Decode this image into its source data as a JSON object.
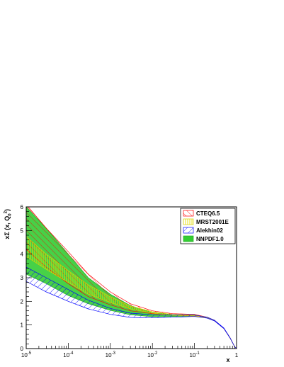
{
  "chart_data": {
    "type": "area",
    "title": "",
    "xlabel": "x",
    "ylabel": "xΣ (x, Q0²)",
    "x_scale": "log",
    "xlim": [
      1e-05,
      1
    ],
    "ylim": [
      0,
      6
    ],
    "x_tick_labels": [
      {
        "base": "10",
        "exp": "-5",
        "value": 1e-05
      },
      {
        "base": "10",
        "exp": "-4",
        "value": 0.0001
      },
      {
        "base": "10",
        "exp": "-3",
        "value": 0.001
      },
      {
        "base": "10",
        "exp": "-2",
        "value": 0.01
      },
      {
        "base": "10",
        "exp": "-1",
        "value": 0.1
      },
      {
        "base": "1",
        "exp": "",
        "value": 1
      }
    ],
    "y_tick_labels": [
      "0",
      "1",
      "2",
      "3",
      "4",
      "5",
      "6"
    ],
    "legend_position": "top-right",
    "x": [
      1e-05,
      3e-05,
      0.0001,
      0.0003,
      0.001,
      0.003,
      0.01,
      0.03,
      0.1,
      0.2,
      0.3,
      0.5,
      0.7,
      0.9,
      1
    ],
    "series": [
      {
        "name": "CTEQ6.5",
        "style": "hatched-diagonal",
        "color": "#ff0000",
        "lower": [
          4.2,
          3.45,
          2.75,
          2.2,
          1.85,
          1.6,
          1.48,
          1.42,
          1.38,
          1.3,
          1.18,
          0.85,
          0.45,
          0.08,
          0.0
        ],
        "upper": [
          6.1,
          5.1,
          4.1,
          3.15,
          2.4,
          1.9,
          1.6,
          1.48,
          1.45,
          1.33,
          1.2,
          0.86,
          0.46,
          0.08,
          0.0
        ]
      },
      {
        "name": "MRST2001E",
        "style": "hatched-vertical",
        "color": "#ffff00",
        "lower": [
          3.9,
          3.35,
          2.8,
          2.3,
          1.95,
          1.68,
          1.5,
          1.41,
          1.38,
          1.3,
          1.18,
          0.85,
          0.45,
          0.08,
          0.0
        ],
        "upper": [
          4.75,
          4.0,
          3.3,
          2.7,
          2.2,
          1.8,
          1.56,
          1.45,
          1.41,
          1.32,
          1.19,
          0.86,
          0.46,
          0.08,
          0.0
        ]
      },
      {
        "name": "Alekhin02",
        "style": "hatched-diagonal",
        "color": "#0000ff",
        "lower": [
          2.85,
          2.4,
          2.0,
          1.68,
          1.45,
          1.32,
          1.3,
          1.33,
          1.36,
          1.29,
          1.17,
          0.85,
          0.45,
          0.08,
          0.0
        ],
        "upper": [
          3.45,
          3.0,
          2.5,
          2.05,
          1.7,
          1.5,
          1.43,
          1.42,
          1.42,
          1.33,
          1.2,
          0.87,
          0.46,
          0.08,
          0.0
        ]
      },
      {
        "name": "NNPDF1.0",
        "style": "solid",
        "color": "#33cc33",
        "lower": [
          3.15,
          2.75,
          2.25,
          1.9,
          1.62,
          1.43,
          1.35,
          1.36,
          1.37,
          1.3,
          1.18,
          0.85,
          0.45,
          0.08,
          0.0
        ],
        "upper": [
          6.0,
          5.1,
          4.0,
          3.0,
          2.3,
          1.82,
          1.52,
          1.44,
          1.43,
          1.33,
          1.2,
          0.86,
          0.46,
          0.08,
          0.0
        ]
      }
    ]
  }
}
